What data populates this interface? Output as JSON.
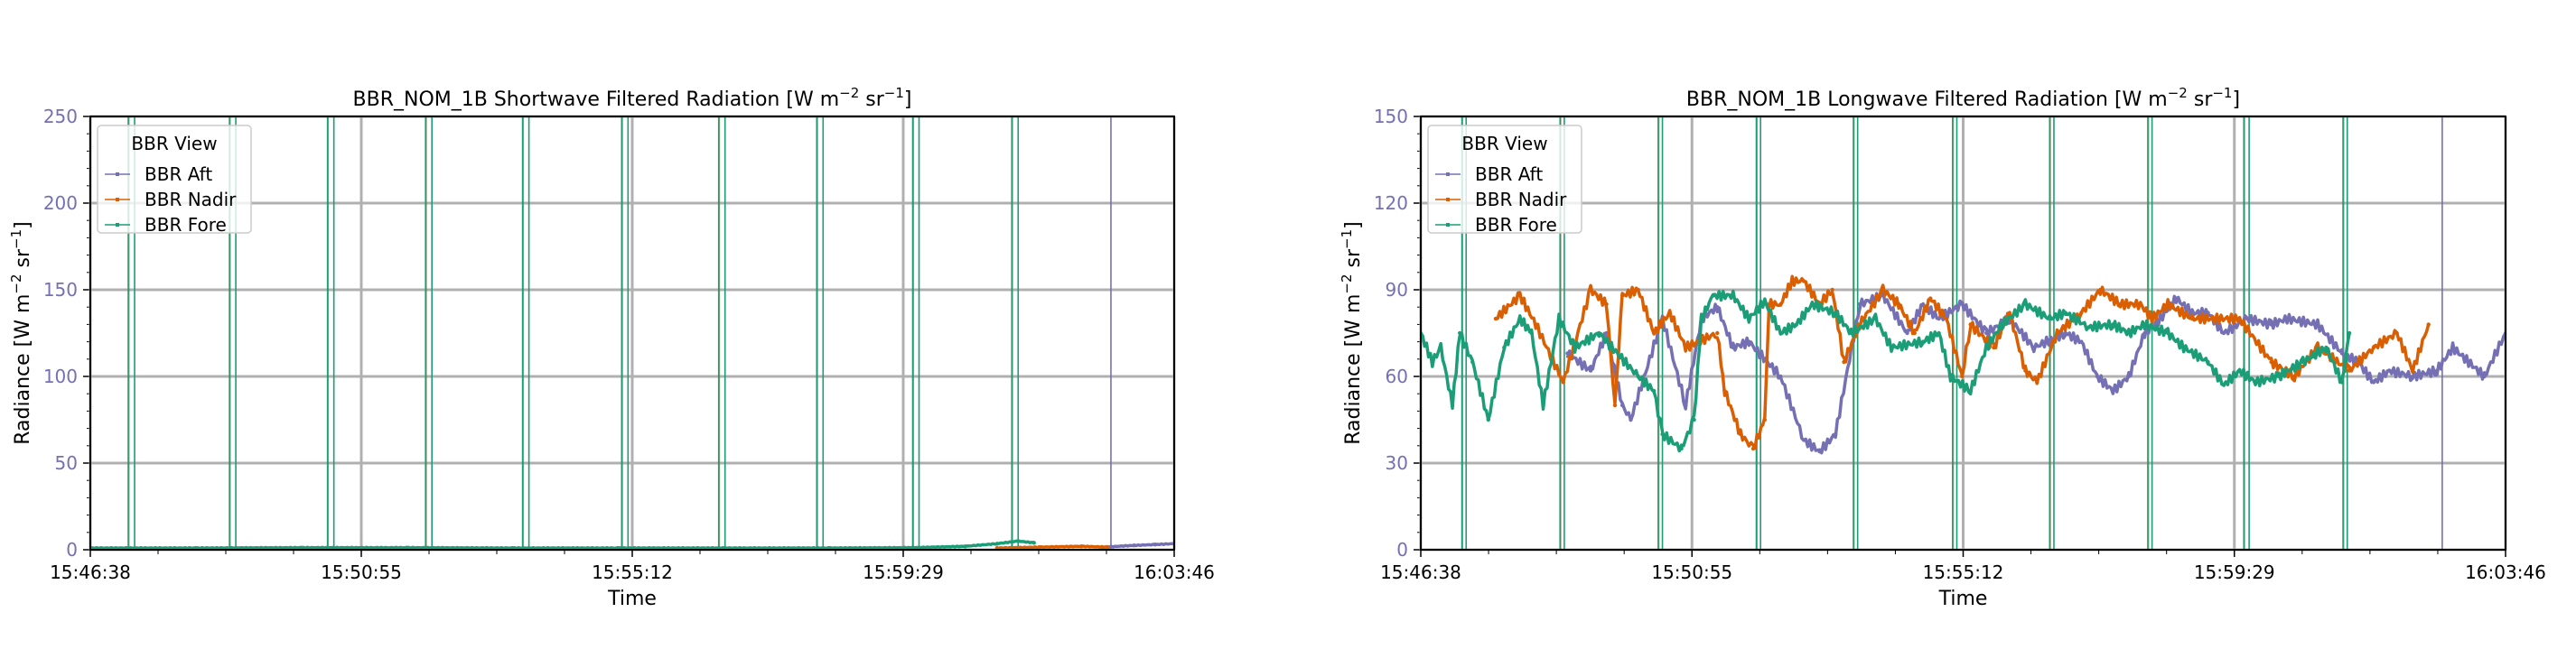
{
  "colors": {
    "aft": "#7570b3",
    "nadir": "#d95f02",
    "fore": "#1b9e77",
    "grid": "#b0b0b0",
    "ytick": "#7570b3"
  },
  "chart_data": [
    {
      "type": "line",
      "title": "BBR_NOM_1B Shortwave Filtered Radiation [W m",
      "title_sup1": "−2",
      "title_mid": " sr",
      "title_sup2": "−1",
      "title_end": "]",
      "xlabel": "Time",
      "ylabel": "Radiance [W m",
      "ylabel_sup1": "−2",
      "ylabel_mid": " sr",
      "ylabel_sup2": "−1",
      "ylabel_end": "]",
      "x_start_seconds": 0,
      "x_end_seconds": 1028,
      "xticks": [
        "15:46:38",
        "15:50:55",
        "15:55:12",
        "15:59:29",
        "16:03:46"
      ],
      "ylim": [
        0,
        250
      ],
      "yticks": [
        "0",
        "50",
        "100",
        "150",
        "200",
        "250"
      ],
      "grid": true,
      "legend": {
        "title": "BBR View",
        "placement": "top-left",
        "entries": [
          "BBR Aft",
          "BBR Nadir",
          "BBR Fore"
        ]
      },
      "spikes_fore_seconds": [
        36,
        42,
        132,
        138,
        225,
        231,
        318,
        324,
        410,
        416,
        504,
        510,
        596,
        602,
        689,
        695,
        780,
        786,
        874,
        880
      ],
      "spikes_aft_seconds": [
        968
      ],
      "series": [
        {
          "name": "BBR Aft",
          "key": "aft",
          "points": [
            [
              960,
              1.5
            ],
            [
              990,
              2.5
            ],
            [
              1010,
              3
            ],
            [
              1028,
              3.5
            ]
          ]
        },
        {
          "name": "BBR Nadir",
          "key": "nadir",
          "points": [
            [
              860,
              1
            ],
            [
              900,
              1.5
            ],
            [
              940,
              2
            ],
            [
              965,
              1.5
            ]
          ]
        },
        {
          "name": "BBR Fore",
          "key": "fore",
          "points": [
            [
              0,
              1
            ],
            [
              100,
              1
            ],
            [
              200,
              1.2
            ],
            [
              300,
              1.2
            ],
            [
              400,
              1
            ],
            [
              500,
              1
            ],
            [
              600,
              1
            ],
            [
              700,
              1
            ],
            [
              780,
              1.2
            ],
            [
              830,
              2
            ],
            [
              860,
              3.5
            ],
            [
              880,
              5
            ],
            [
              895,
              4
            ]
          ]
        }
      ]
    },
    {
      "type": "line",
      "title": "BBR_NOM_1B Longwave Filtered Radiation [W m",
      "title_sup1": "−2",
      "title_mid": " sr",
      "title_sup2": "−1",
      "title_end": "]",
      "xlabel": "Time",
      "ylabel": "Radiance [W m",
      "ylabel_sup1": "−2",
      "ylabel_mid": " sr",
      "ylabel_sup2": "−1",
      "ylabel_end": "]",
      "x_start_seconds": 0,
      "x_end_seconds": 1028,
      "xticks": [
        "15:46:38",
        "15:50:55",
        "15:55:12",
        "15:59:29",
        "16:03:46"
      ],
      "ylim": [
        0,
        150
      ],
      "yticks": [
        "0",
        "30",
        "60",
        "90",
        "120",
        "150"
      ],
      "grid": true,
      "legend": {
        "title": "BBR View",
        "placement": "top-left",
        "entries": [
          "BBR Aft",
          "BBR Nadir",
          "BBR Fore"
        ]
      },
      "spikes_fore_seconds": [
        39,
        43,
        132,
        136,
        225,
        229,
        318,
        322,
        410,
        414,
        504,
        508,
        596,
        600,
        689,
        693,
        780,
        785,
        874,
        878
      ],
      "spikes_aft_seconds": [
        968
      ],
      "series": [
        {
          "name": "BBR Aft",
          "key": "aft",
          "points": [
            [
              139,
              68
            ],
            [
              161,
              62
            ],
            [
              176,
              75
            ],
            [
              191,
              50
            ],
            [
              199,
              45
            ],
            [
              229,
              80
            ],
            [
              251,
              50
            ],
            [
              266,
              80
            ],
            [
              281,
              84
            ],
            [
              296,
              70
            ],
            [
              311,
              72
            ],
            [
              341,
              60
            ],
            [
              363,
              38
            ],
            [
              378,
              34
            ],
            [
              393,
              40
            ],
            [
              416,
              85
            ],
            [
              438,
              88
            ],
            [
              461,
              75
            ],
            [
              476,
              85
            ],
            [
              491,
              80
            ],
            [
              513,
              85
            ],
            [
              536,
              75
            ],
            [
              558,
              80
            ],
            [
              581,
              70
            ],
            [
              611,
              75
            ],
            [
              626,
              72
            ],
            [
              641,
              60
            ],
            [
              656,
              55
            ],
            [
              671,
              60
            ],
            [
              686,
              75
            ],
            [
              701,
              80
            ],
            [
              716,
              87
            ],
            [
              731,
              82
            ],
            [
              746,
              82
            ],
            [
              761,
              75
            ],
            [
              783,
              80
            ],
            [
              806,
              78
            ],
            [
              821,
              80
            ],
            [
              850,
              78
            ],
            [
              873,
              68
            ],
            [
              888,
              65
            ],
            [
              903,
              58
            ],
            [
              918,
              62
            ],
            [
              940,
              60
            ],
            [
              963,
              62
            ],
            [
              978,
              70
            ],
            [
              993,
              65
            ],
            [
              1008,
              60
            ],
            [
              1028,
              75
            ]
          ]
        },
        {
          "name": "BBR Nadir",
          "key": "nadir",
          "points": [
            [
              71,
              80
            ],
            [
              94,
              88
            ],
            [
              109,
              78
            ],
            [
              135,
              58
            ],
            [
              161,
              90
            ],
            [
              176,
              85
            ],
            [
              184,
              50
            ],
            [
              191,
              88
            ],
            [
              206,
              90
            ],
            [
              221,
              75
            ],
            [
              236,
              82
            ],
            [
              251,
              70
            ],
            [
              281,
              75
            ],
            [
              288,
              55
            ],
            [
              303,
              40
            ],
            [
              315,
              35
            ],
            [
              326,
              45
            ],
            [
              330,
              85
            ],
            [
              341,
              85
            ],
            [
              352,
              93
            ],
            [
              363,
              93
            ],
            [
              378,
              85
            ],
            [
              390,
              90
            ],
            [
              401,
              65
            ],
            [
              416,
              78
            ],
            [
              438,
              90
            ],
            [
              453,
              85
            ],
            [
              468,
              75
            ],
            [
              483,
              87
            ],
            [
              498,
              80
            ],
            [
              513,
              60
            ],
            [
              521,
              78
            ],
            [
              543,
              70
            ],
            [
              558,
              82
            ],
            [
              573,
              62
            ],
            [
              584,
              58
            ],
            [
              603,
              75
            ],
            [
              626,
              82
            ],
            [
              644,
              90
            ],
            [
              663,
              85
            ],
            [
              682,
              85
            ],
            [
              693,
              80
            ],
            [
              708,
              85
            ],
            [
              731,
              80
            ],
            [
              776,
              80
            ],
            [
              806,
              65
            ],
            [
              828,
              60
            ],
            [
              850,
              70
            ],
            [
              880,
              62
            ],
            [
              903,
              70
            ],
            [
              925,
              75
            ],
            [
              940,
              62
            ],
            [
              955,
              78
            ]
          ]
        },
        {
          "name": "BBR Fore",
          "key": "fore",
          "points": [
            [
              0,
              75
            ],
            [
              11,
              65
            ],
            [
              19,
              70
            ],
            [
              30,
              50
            ],
            [
              37,
              75
            ],
            [
              49,
              65
            ],
            [
              64,
              45
            ],
            [
              79,
              70
            ],
            [
              94,
              80
            ],
            [
              105,
              75
            ],
            [
              116,
              50
            ],
            [
              131,
              80
            ],
            [
              146,
              70
            ],
            [
              169,
              75
            ],
            [
              206,
              60
            ],
            [
              221,
              55
            ],
            [
              229,
              40
            ],
            [
              247,
              35
            ],
            [
              259,
              45
            ],
            [
              266,
              80
            ],
            [
              277,
              88
            ],
            [
              296,
              88
            ],
            [
              311,
              80
            ],
            [
              326,
              86
            ],
            [
              341,
              75
            ],
            [
              356,
              78
            ],
            [
              371,
              85
            ],
            [
              393,
              82
            ],
            [
              408,
              75
            ],
            [
              431,
              80
            ],
            [
              446,
              70
            ],
            [
              476,
              72
            ],
            [
              491,
              75
            ],
            [
              502,
              60
            ],
            [
              521,
              55
            ],
            [
              536,
              70
            ],
            [
              551,
              78
            ],
            [
              573,
              85
            ],
            [
              596,
              80
            ],
            [
              611,
              82
            ],
            [
              633,
              77
            ],
            [
              656,
              78
            ],
            [
              671,
              75
            ],
            [
              686,
              78
            ],
            [
              708,
              75
            ],
            [
              723,
              70
            ],
            [
              746,
              65
            ],
            [
              761,
              57
            ],
            [
              776,
              62
            ],
            [
              791,
              58
            ],
            [
              813,
              60
            ],
            [
              836,
              65
            ],
            [
              858,
              70
            ],
            [
              873,
              58
            ],
            [
              880,
              75
            ]
          ]
        }
      ]
    }
  ]
}
